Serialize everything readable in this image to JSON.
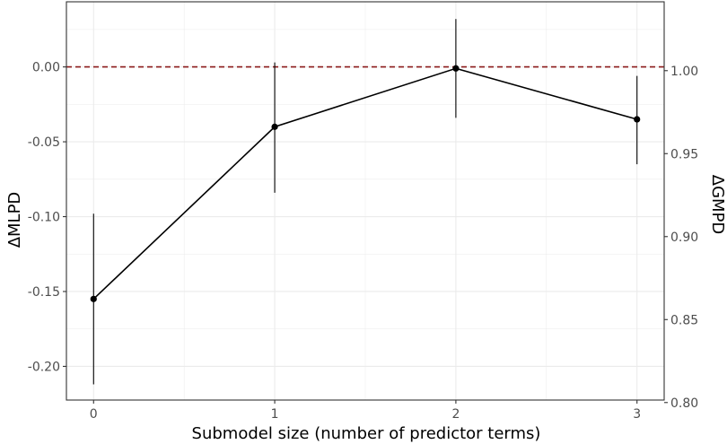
{
  "chart_data": {
    "type": "line",
    "title": "",
    "xlabel": "Submodel size (number of predictor terms)",
    "ylabel": "ΔMLPD",
    "ylabel_right": "ΔGMPD",
    "x": [
      0,
      1,
      2,
      3
    ],
    "xlim": [
      -0.15,
      3.15
    ],
    "ylim": [
      -0.2225,
      0.0435
    ],
    "y2lim": [
      0.8015,
      1.0415
    ],
    "x_ticks": [
      "0",
      "1",
      "2",
      "3"
    ],
    "y_ticks": [
      "0.00",
      "-0.05",
      "-0.10",
      "-0.15",
      "-0.20"
    ],
    "y_tick_values": [
      0.0,
      -0.05,
      -0.1,
      -0.15,
      -0.2
    ],
    "y2_ticks": [
      "1.00",
      "0.95",
      "0.90",
      "0.85",
      "0.80"
    ],
    "y2_tick_values": [
      1.0,
      0.95,
      0.9,
      0.85,
      0.8
    ],
    "series": [
      {
        "values": [
          -0.155,
          -0.04,
          -0.001,
          -0.035
        ],
        "lower": [
          -0.212,
          -0.084,
          -0.034,
          -0.065
        ],
        "upper": [
          -0.098,
          0.003,
          0.032,
          -0.006
        ]
      }
    ],
    "reference_line": {
      "y": 0.0,
      "style": "dashed"
    },
    "grid": true,
    "legend": "none",
    "colors": {
      "line": "#000000",
      "reference": "#8b1a1a",
      "grid": "#ebebeb",
      "panel_border": "#333333"
    }
  }
}
